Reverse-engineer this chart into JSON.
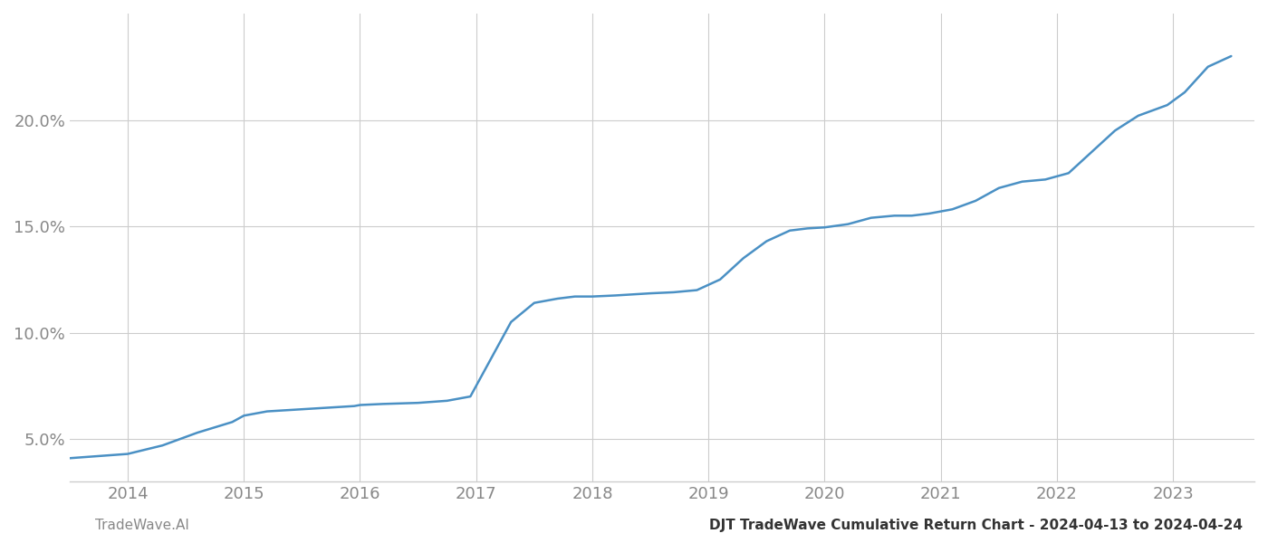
{
  "x_years": [
    2014,
    2015,
    2016,
    2017,
    2018,
    2019,
    2020,
    2021,
    2022,
    2023
  ],
  "x_data": [
    2013.5,
    2014.0,
    2014.3,
    2014.6,
    2014.9,
    2015.0,
    2015.2,
    2015.5,
    2015.8,
    2015.95,
    2016.0,
    2016.2,
    2016.5,
    2016.75,
    2016.95,
    2017.1,
    2017.3,
    2017.5,
    2017.7,
    2017.85,
    2018.0,
    2018.2,
    2018.5,
    2018.7,
    2018.9,
    2019.1,
    2019.3,
    2019.5,
    2019.7,
    2019.85,
    2020.0,
    2020.2,
    2020.4,
    2020.6,
    2020.75,
    2020.9,
    2021.1,
    2021.3,
    2021.5,
    2021.7,
    2021.9,
    2022.1,
    2022.3,
    2022.5,
    2022.7,
    2022.85,
    2022.95,
    2023.1,
    2023.3,
    2023.5
  ],
  "y_data": [
    4.1,
    4.3,
    4.7,
    5.3,
    5.8,
    6.1,
    6.3,
    6.4,
    6.5,
    6.55,
    6.6,
    6.65,
    6.7,
    6.8,
    7.0,
    8.5,
    10.5,
    11.4,
    11.6,
    11.7,
    11.7,
    11.75,
    11.85,
    11.9,
    12.0,
    12.5,
    13.5,
    14.3,
    14.8,
    14.9,
    14.95,
    15.1,
    15.4,
    15.5,
    15.5,
    15.6,
    15.8,
    16.2,
    16.8,
    17.1,
    17.2,
    17.5,
    18.5,
    19.5,
    20.2,
    20.5,
    20.7,
    21.3,
    22.5,
    23.0
  ],
  "x_tick_positions": [
    2014,
    2015,
    2016,
    2017,
    2018,
    2019,
    2020,
    2021,
    2022,
    2023
  ],
  "x_tick_labels": [
    "2014",
    "2015",
    "2016",
    "2017",
    "2018",
    "2019",
    "2020",
    "2021",
    "2022",
    "2023"
  ],
  "y_ticks": [
    5.0,
    10.0,
    15.0,
    20.0
  ],
  "y_tick_labels": [
    "5.0%",
    "10.0%",
    "15.0%",
    "20.0%"
  ],
  "xlim": [
    2013.5,
    2023.7
  ],
  "ylim": [
    3.0,
    25.0
  ],
  "line_color": "#4a90c4",
  "line_width": 1.8,
  "grid_color": "#cccccc",
  "bg_color": "#ffffff",
  "footer_left": "TradeWave.AI",
  "footer_right": "DJT TradeWave Cumulative Return Chart - 2024-04-13 to 2024-04-24",
  "footer_color": "#888888",
  "footer_right_color": "#333333",
  "footer_fontsize": 11,
  "tick_fontsize": 13,
  "tick_color": "#888888"
}
